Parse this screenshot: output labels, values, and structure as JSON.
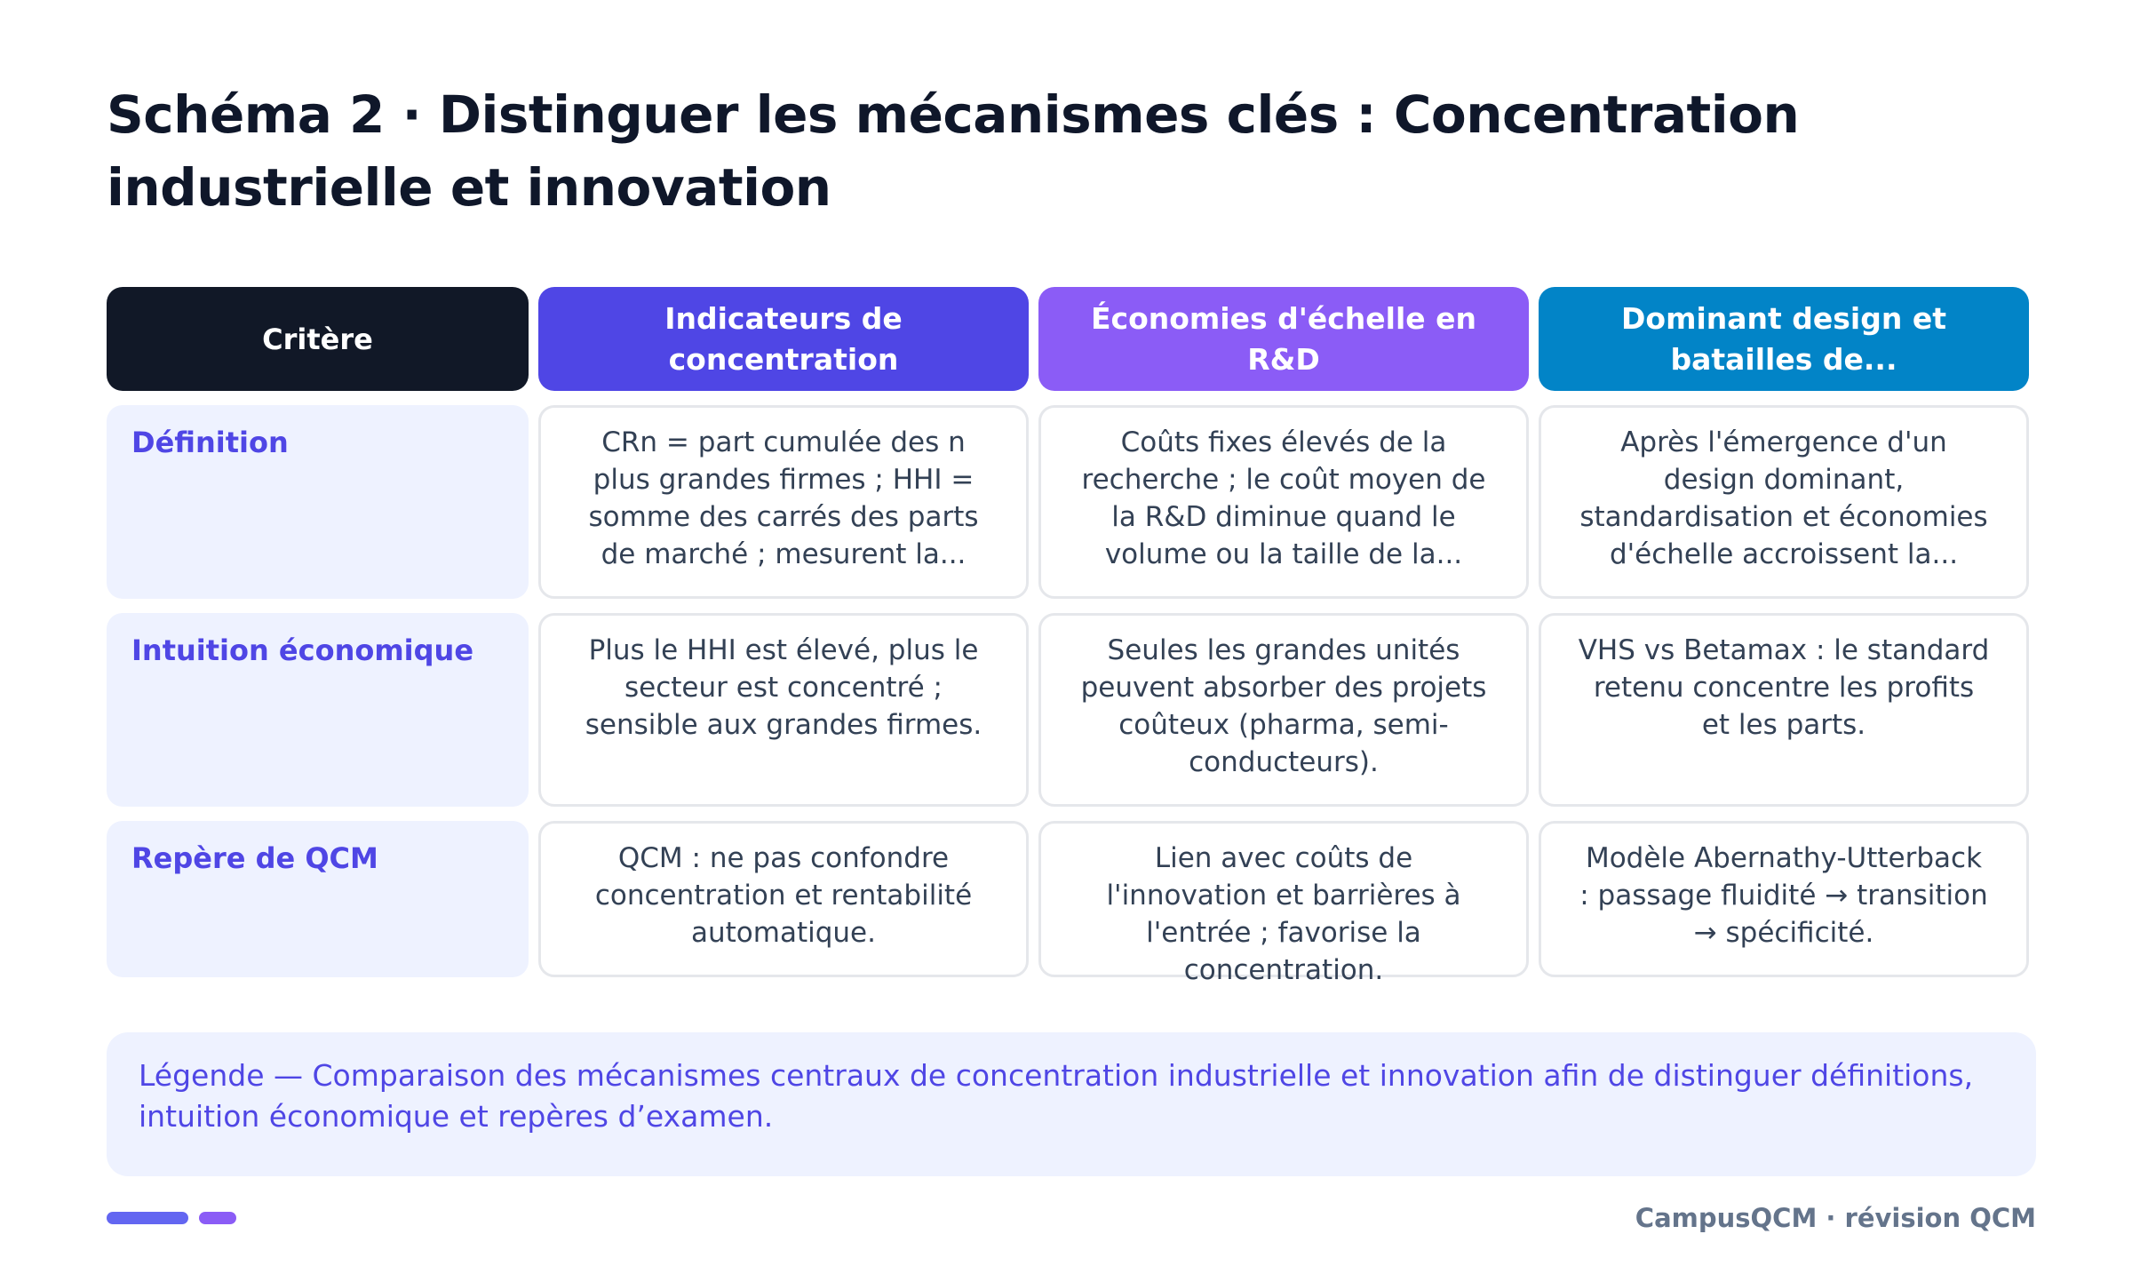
{
  "title": "Schéma 2 · Distinguer les mécanismes clés : Concentration industrielle et innovation",
  "table": {
    "headers": [
      "Critère",
      "Indicateurs de concentration",
      "Économies d'échelle en R&D",
      "Dominant design et batailles de..."
    ],
    "rows": [
      {
        "label": "Définition",
        "cells": [
          "CRn = part cumulée des n plus grandes firmes ; HHI = somme des carrés des parts de marché ; mesurent la...",
          "Coûts fixes élevés de la recherche ; le coût moyen de la R&D diminue quand le volume ou la taille de la...",
          "Après l'émergence d'un design dominant, standardisation et économies d'échelle accroissent la..."
        ]
      },
      {
        "label": "Intuition économique",
        "cells": [
          "Plus le HHI est élevé, plus le secteur est concentré ; sensible aux grandes firmes.",
          "Seules les grandes unités peuvent absorber des projets coûteux (pharma, semi-conducteurs).",
          "VHS vs Betamax : le standard retenu concentre les profits et les parts."
        ]
      },
      {
        "label": "Repère de QCM",
        "cells": [
          "QCM : ne pas confondre concentration et rentabilité automatique.",
          "Lien avec coûts de l'innovation et barrières à l'entrée ; favorise la concentration.",
          "Modèle Abernathy-Utterback : passage fluidité → transition → spécificité."
        ]
      }
    ]
  },
  "legend": "Légende — Comparaison des mécanismes centraux de concentration industrielle et innovation afin de distinguer définitions, intuition économique et repères d’examen.",
  "footer": "CampusQCM · révision QCM",
  "colors": {
    "criterion_header": "#111827",
    "column1_header": "#4f46e5",
    "column2_header": "#8b5cf6",
    "column3_header": "#0284c7",
    "row_label_bg": "#eef2ff",
    "row_label_text": "#4f46e5"
  }
}
